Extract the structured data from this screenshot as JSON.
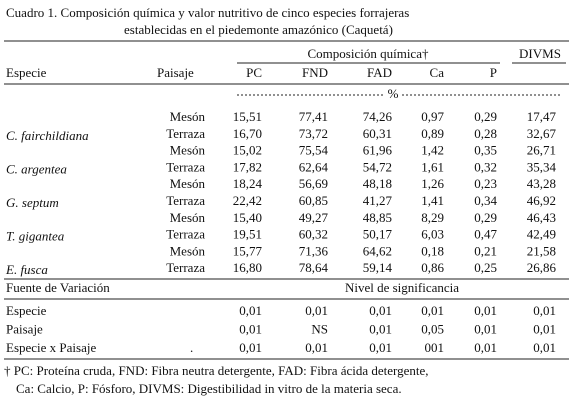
{
  "title": {
    "line1": "Cuadro 1. Composición química y valor nutritivo de cinco especies forrajeras",
    "line2": "establecidas en el piedemonte amazónico (Caquetá)"
  },
  "table": {
    "group_header": "Composición química†",
    "divms_header": "DIVMS",
    "columns": [
      "Especie",
      "Paisaje",
      "PC",
      "FND",
      "FAD",
      "Ca",
      "P"
    ],
    "unit": "%",
    "rows": [
      {
        "landscape": "Mesón",
        "values": [
          "15,51",
          "77,41",
          "74,26",
          "0,97",
          "0,29",
          "17,47"
        ]
      },
      {
        "species": "C. fairchildiana",
        "landscape": "Terraza",
        "values": [
          "16,70",
          "73,72",
          "60,31",
          "0,89",
          "0,28",
          "32,67"
        ]
      },
      {
        "landscape": "Mesón",
        "values": [
          "15,02",
          "75,54",
          "61,96",
          "1,42",
          "0,35",
          "26,71"
        ]
      },
      {
        "species": "C. argentea",
        "landscape": "Terraza",
        "values": [
          "17,82",
          "62,64",
          "54,72",
          "1,61",
          "0,32",
          "35,34"
        ]
      },
      {
        "landscape": "Mesón",
        "values": [
          "18,24",
          "56,69",
          "48,18",
          "1,26",
          "0,23",
          "43,28"
        ]
      },
      {
        "species": "G. septum",
        "landscape": "Terraza",
        "values": [
          "22,42",
          "60,85",
          "41,27",
          "1,41",
          "0,34",
          "46,92"
        ]
      },
      {
        "landscape": "Mesón",
        "values": [
          "15,40",
          "49,27",
          "48,85",
          "8,29",
          "0,29",
          "46,43"
        ]
      },
      {
        "species": "T. gigantea",
        "landscape": "Terraza",
        "values": [
          "19,51",
          "60,32",
          "50,17",
          "6,03",
          "0,47",
          "42,49"
        ]
      },
      {
        "landscape": "Mesón",
        "values": [
          "15,77",
          "71,36",
          "64,62",
          "0,18",
          "0,21",
          "21,58"
        ]
      },
      {
        "species": "E. fusca",
        "landscape": "Terraza",
        "values": [
          "16,80",
          "78,64",
          "59,14",
          "0,86",
          "0,25",
          "26,86"
        ]
      }
    ]
  },
  "significance": {
    "source_header": "Fuente de Variación",
    "level_header": "Nivel de significancia",
    "rows": [
      {
        "source": "Especie",
        "values": [
          "0,01",
          "0,01",
          "0,01",
          "0,01",
          "0,01",
          "0,01"
        ]
      },
      {
        "source": "Paisaje",
        "values": [
          "0,01",
          "NS",
          "0,01",
          "0,05",
          "0,01",
          "0,01"
        ]
      },
      {
        "source": "Especie x Paisaje",
        "mark": ".",
        "values": [
          "0,01",
          "0,01",
          "0,01",
          "001",
          "0,01",
          "0,01"
        ]
      }
    ]
  },
  "footnote": {
    "line1": "† PC: Proteína cruda, FND: Fibra neutra detergente, FAD: Fibra ácida detergente,",
    "line2": "Ca: Calcio, P: Fósforo, DIVMS: Digestibilidad in vitro de la materia seca."
  }
}
